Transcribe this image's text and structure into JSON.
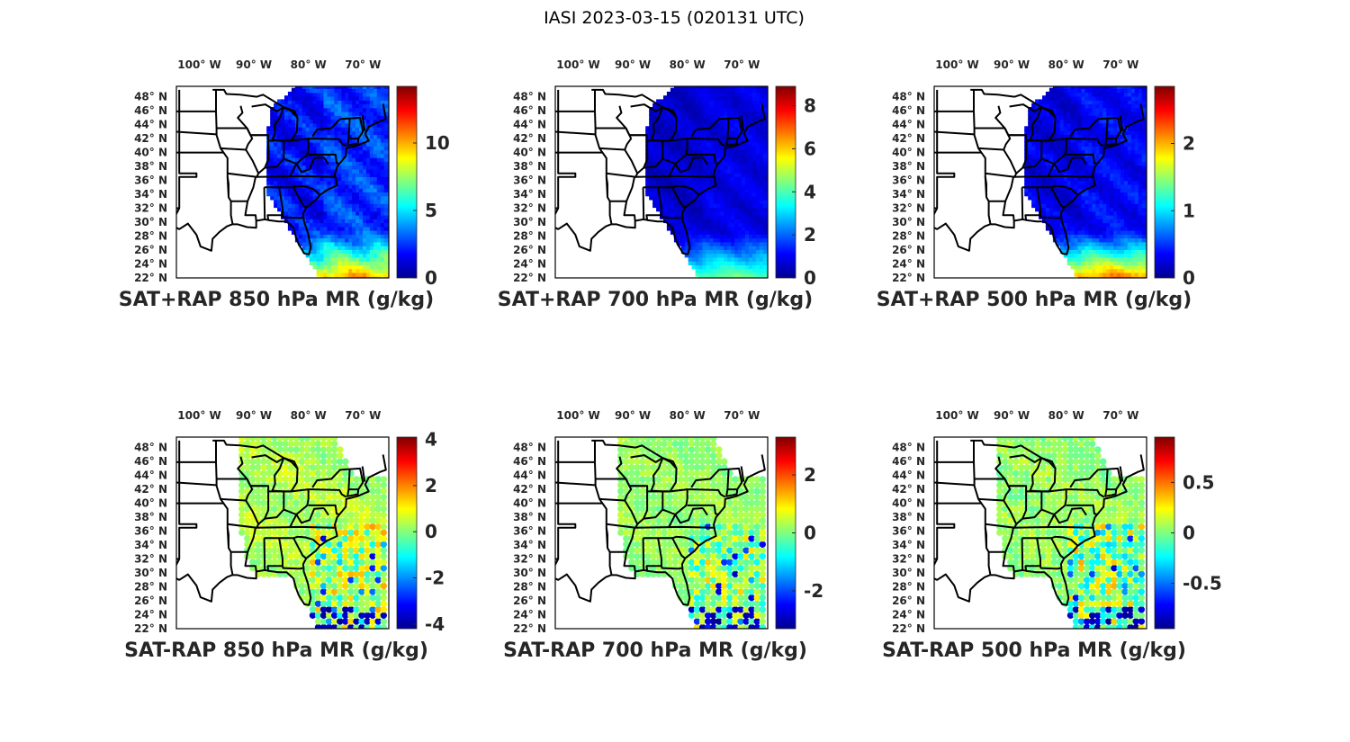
{
  "figure": {
    "title": "IASI 2023-03-15 (020131 UTC)"
  },
  "colormap": [
    "#00008f",
    "#0000ff",
    "#007fff",
    "#00ffff",
    "#7fff7f",
    "#ffff00",
    "#ff7f00",
    "#ff0000",
    "#7f0000"
  ],
  "panels": [
    {
      "id": "sat-plus-rap-850",
      "title": "SAT+RAP 850 hPa MR (g/kg)",
      "lon_ticks": [
        "100° W",
        "90° W",
        "80° W",
        "70° W"
      ],
      "lat_ticks": [
        "48° N",
        "46° N",
        "44° N",
        "42° N",
        "40° N",
        "38° N",
        "36° N",
        "34° N",
        "32° N",
        "30° N",
        "28° N",
        "26° N",
        "24° N",
        "22° N"
      ],
      "colorbar": {
        "min": 0,
        "max": 14.2,
        "ticks": [
          0,
          5,
          10
        ],
        "tick_labels": [
          "0",
          "5",
          "10"
        ]
      },
      "field": "swath",
      "swath_low": 1.8,
      "swath_south": 9.5
    },
    {
      "id": "sat-plus-rap-700",
      "title": "SAT+RAP 700 hPa MR (g/kg)",
      "lon_ticks": [
        "100° W",
        "90° W",
        "80° W",
        "70° W"
      ],
      "lat_ticks": [
        "48° N",
        "46° N",
        "44° N",
        "42° N",
        "40° N",
        "38° N",
        "36° N",
        "34° N",
        "32° N",
        "30° N",
        "28° N",
        "26° N",
        "24° N",
        "22° N"
      ],
      "colorbar": {
        "min": 0,
        "max": 8.9,
        "ticks": [
          0,
          2,
          4,
          6,
          8
        ],
        "tick_labels": [
          "0",
          "2",
          "4",
          "6",
          "8"
        ]
      },
      "field": "swath",
      "swath_low": 0.6,
      "swath_south": 4.2
    },
    {
      "id": "sat-plus-rap-500",
      "title": "SAT+RAP 500 hPa MR (g/kg)",
      "lon_ticks": [
        "100° W",
        "90° W",
        "80° W",
        "70° W"
      ],
      "lat_ticks": [
        "48° N",
        "46° N",
        "44° N",
        "42° N",
        "40° N",
        "38° N",
        "36° N",
        "34° N",
        "32° N",
        "30° N",
        "28° N",
        "26° N",
        "24° N",
        "22° N"
      ],
      "colorbar": {
        "min": 0,
        "max": 2.85,
        "ticks": [
          0,
          1,
          2
        ],
        "tick_labels": [
          "0",
          "1",
          "2"
        ]
      },
      "field": "swath",
      "swath_low": 0.25,
      "swath_south": 2.1
    },
    {
      "id": "sat-minus-rap-850",
      "title": "SAT-RAP 850 hPa MR (g/kg)",
      "lon_ticks": [
        "100° W",
        "90° W",
        "80° W",
        "70° W"
      ],
      "lat_ticks": [
        "48° N",
        "46° N",
        "44° N",
        "42° N",
        "40° N",
        "38° N",
        "36° N",
        "34° N",
        "32° N",
        "30° N",
        "28° N",
        "26° N",
        "24° N",
        "22° N"
      ],
      "colorbar": {
        "min": -4.2,
        "max": 4.1,
        "ticks": [
          -4,
          -2,
          0,
          2,
          4
        ],
        "tick_labels": [
          "-4",
          "-2",
          "0",
          "2",
          "4"
        ]
      },
      "field": "diff",
      "diff_land": 0.4,
      "diff_spread": 1.6
    },
    {
      "id": "sat-minus-rap-700",
      "title": "SAT-RAP 700 hPa MR (g/kg)",
      "lon_ticks": [
        "100° W",
        "90° W",
        "80° W",
        "70° W"
      ],
      "lat_ticks": [
        "48° N",
        "46° N",
        "44° N",
        "42° N",
        "40° N",
        "38° N",
        "36° N",
        "34° N",
        "32° N",
        "30° N",
        "28° N",
        "26° N",
        "24° N",
        "22° N"
      ],
      "colorbar": {
        "min": -3.3,
        "max": 3.3,
        "ticks": [
          -2,
          0,
          2
        ],
        "tick_labels": [
          "-2",
          "0",
          "2"
        ]
      },
      "field": "diff",
      "diff_land": 0.2,
      "diff_spread": 1.1
    },
    {
      "id": "sat-minus-rap-500",
      "title": "SAT-RAP 500 hPa MR (g/kg)",
      "lon_ticks": [
        "100° W",
        "90° W",
        "80° W",
        "70° W"
      ],
      "lat_ticks": [
        "48° N",
        "46° N",
        "44° N",
        "42° N",
        "40° N",
        "38° N",
        "36° N",
        "34° N",
        "32° N",
        "30° N",
        "28° N",
        "26° N",
        "24° N",
        "22° N"
      ],
      "colorbar": {
        "min": -0.95,
        "max": 0.95,
        "ticks": [
          -0.5,
          0,
          0.5
        ],
        "tick_labels": [
          "-0.5",
          "0",
          "0.5"
        ]
      },
      "field": "diff",
      "diff_land": 0.05,
      "diff_spread": 0.4
    }
  ]
}
